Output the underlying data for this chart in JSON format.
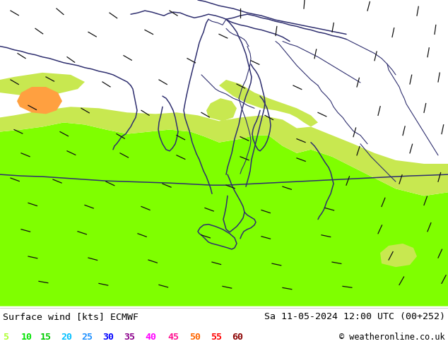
{
  "title_left": "Surface wind [kts] ECMWF",
  "title_right": "Sa 11-05-2024 12:00 UTC (00+252)",
  "copyright": "© weatheronline.co.uk",
  "legend_values": [
    "5",
    "10",
    "15",
    "20",
    "25",
    "30",
    "35",
    "40",
    "45",
    "50",
    "55",
    "60"
  ],
  "legend_colors": [
    "#adff2f",
    "#00e400",
    "#00cc00",
    "#00bfff",
    "#1e90ff",
    "#0000ff",
    "#8b008b",
    "#ff00ff",
    "#ff1493",
    "#ff6600",
    "#ff0000",
    "#8b0000"
  ],
  "yellow_bg": "#e8d800",
  "green_bright": "#7fff00",
  "green_med": "#90d020",
  "green_light": "#b8e840",
  "green_pale": "#c8e850",
  "orange_area": "#ffa040",
  "border_color": "#2f2f6f",
  "barb_color": "#111111",
  "bottom_bg": "#ffffff",
  "fig_width": 6.34,
  "fig_height": 4.9,
  "dpi": 100
}
